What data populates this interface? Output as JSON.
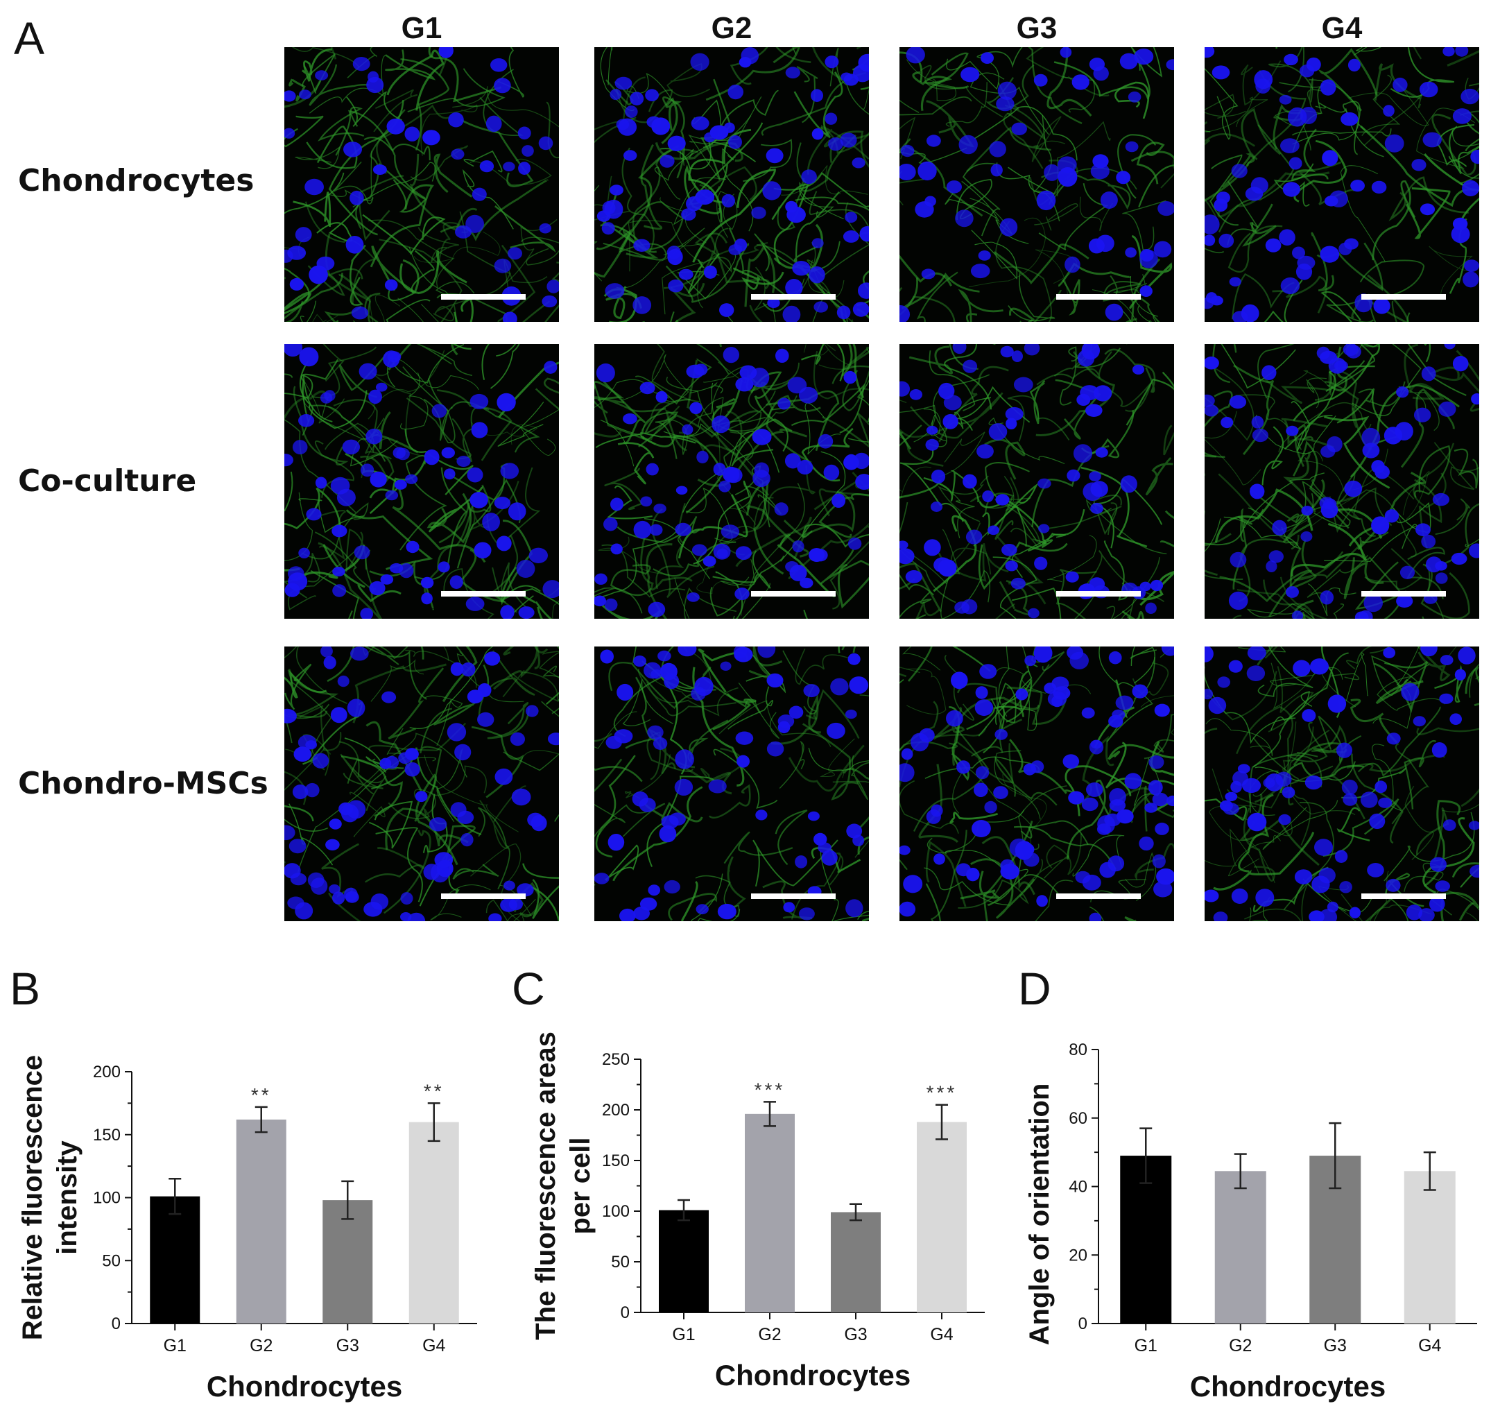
{
  "panel_a": {
    "letter": "A",
    "columns": [
      "G1",
      "G2",
      "G3",
      "G4"
    ],
    "rows": [
      "Chondrocytes",
      "Co-culture",
      "Chondro-MSCs"
    ]
  },
  "colors": {
    "nuclei": "#1a14f0",
    "fibers": "#2f9a2a",
    "scalebar": "#ffffff",
    "bar_G1": "#000000",
    "bar_G2": "#a3a3ab",
    "bar_G3": "#7e7e7e",
    "bar_G4": "#d9d9d9"
  },
  "chart_data": [
    {
      "panel": "B",
      "type": "bar",
      "categories": [
        "G1",
        "G2",
        "G3",
        "G4"
      ],
      "values": [
        101,
        162,
        98,
        160
      ],
      "errors": [
        14,
        10,
        15,
        15
      ],
      "annotations": [
        "",
        "**",
        "",
        "**"
      ],
      "xlabel": "Chondrocytes",
      "ylabel_lines": [
        "Relative fluorescence",
        "intensity"
      ],
      "ylim": [
        0,
        200
      ],
      "yticks": [
        0,
        50,
        100,
        150,
        200
      ]
    },
    {
      "panel": "C",
      "type": "bar",
      "categories": [
        "G1",
        "G2",
        "G3",
        "G4"
      ],
      "values": [
        101,
        196,
        99,
        188
      ],
      "errors": [
        10,
        12,
        8,
        17
      ],
      "annotations": [
        "",
        "***",
        "",
        "***"
      ],
      "xlabel": "Chondrocytes",
      "ylabel_lines": [
        "The fluorescence areas",
        "per cell"
      ],
      "ylim": [
        0,
        250
      ],
      "yticks": [
        0,
        50,
        100,
        150,
        200,
        250
      ]
    },
    {
      "panel": "D",
      "type": "bar",
      "categories": [
        "G1",
        "G2",
        "G3",
        "G4"
      ],
      "values": [
        49,
        44.5,
        49,
        44.5
      ],
      "errors": [
        8,
        5,
        9.5,
        5.5
      ],
      "annotations": [
        "",
        "",
        "",
        ""
      ],
      "xlabel": "Chondrocytes",
      "ylabel_lines": [
        "Angle of orientation"
      ],
      "ylim": [
        0,
        80
      ],
      "yticks": [
        0,
        20,
        40,
        60,
        80
      ]
    }
  ]
}
